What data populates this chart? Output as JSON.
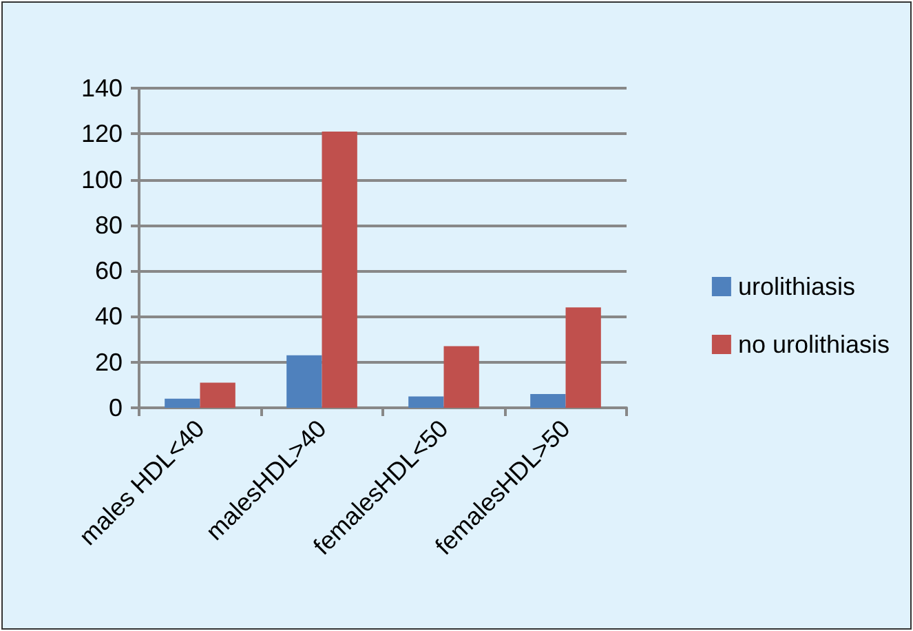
{
  "chart_data": {
    "type": "bar",
    "categories": [
      "males HDL<40",
      "malesHDL>40",
      "femalesHDL<50",
      "femalesHDL>50"
    ],
    "series": [
      {
        "name": "urolithiasis",
        "color": "#4f81bd",
        "values": [
          4,
          23,
          5,
          6
        ]
      },
      {
        "name": "no urolithiasis",
        "color": "#c0504d",
        "values": [
          11,
          121,
          27,
          44
        ]
      }
    ],
    "ylim": [
      0,
      140
    ],
    "yticks": [
      0,
      20,
      40,
      60,
      80,
      100,
      120,
      140
    ],
    "grid": "y",
    "legend": "right"
  }
}
